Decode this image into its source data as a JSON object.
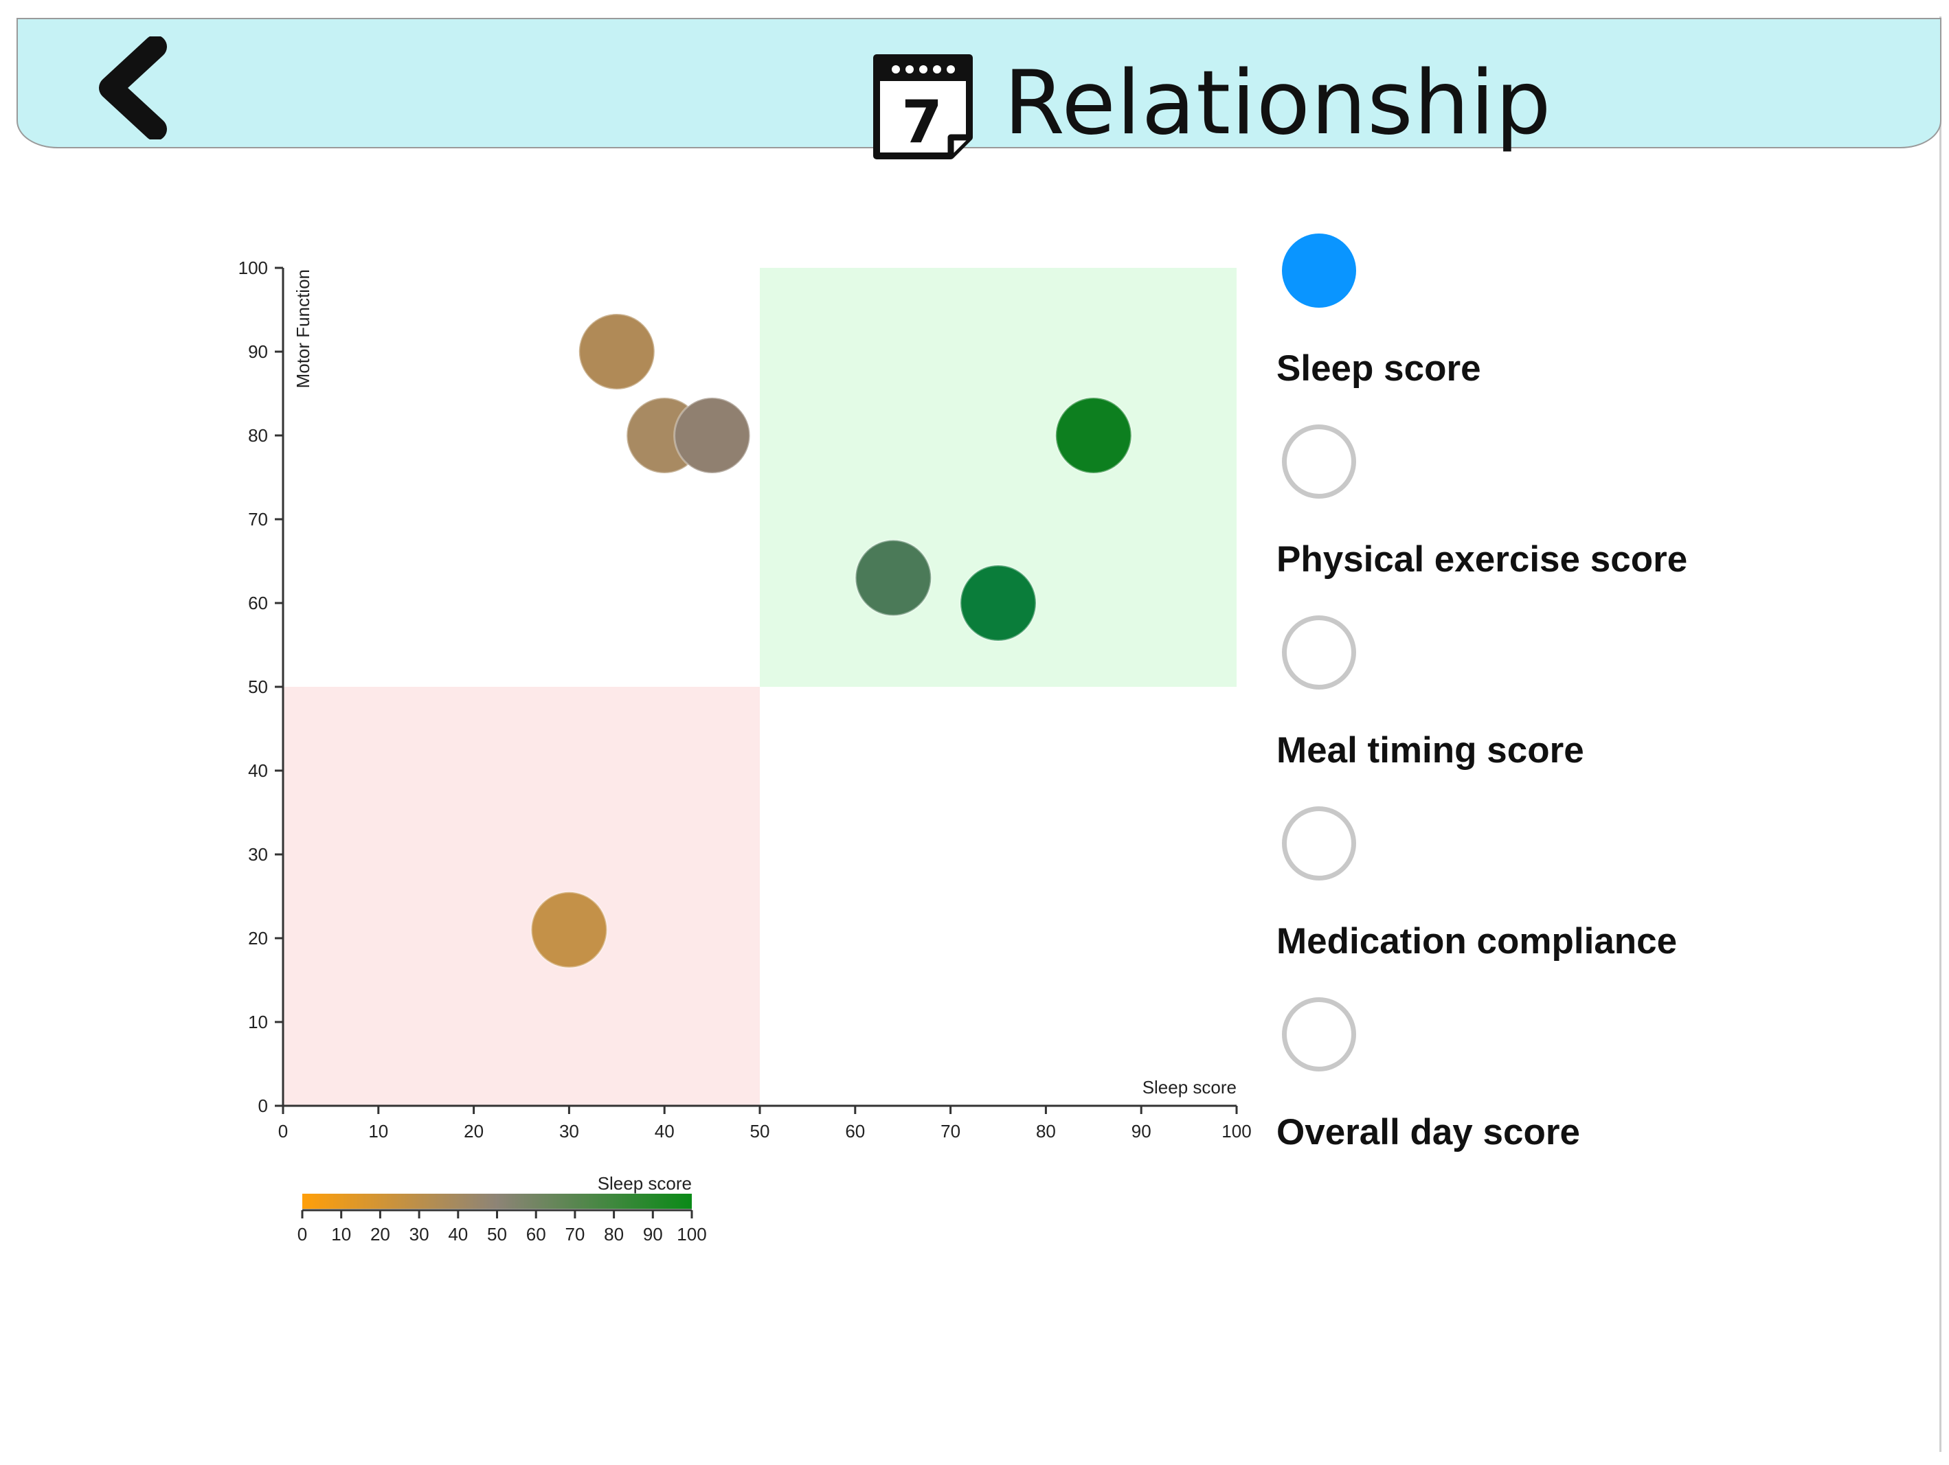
{
  "header": {
    "title": "Relationship",
    "back_icon": "chevron-left-icon",
    "calendar_icon": "calendar-icon",
    "calendar_day": "7"
  },
  "legend": {
    "items": [
      {
        "label": "Sleep score",
        "selected": true
      },
      {
        "label": "Physical exercise score",
        "selected": false
      },
      {
        "label": "Meal timing score",
        "selected": false
      },
      {
        "label": "Medication compliance",
        "selected": false
      },
      {
        "label": "Overall day score",
        "selected": false
      }
    ],
    "selected_color": "#0a95ff",
    "unselected_color": "#c8c8c8"
  },
  "chart_data": {
    "type": "scatter",
    "xlabel": "Sleep score",
    "ylabel": "Motor Function",
    "xlim": [
      0,
      100
    ],
    "ylim": [
      0,
      100
    ],
    "x_ticks": [
      0,
      10,
      20,
      30,
      40,
      50,
      60,
      70,
      80,
      90,
      100
    ],
    "y_ticks": [
      0,
      10,
      20,
      30,
      40,
      50,
      60,
      70,
      80,
      90,
      100
    ],
    "regions": [
      {
        "name": "good-quadrant",
        "x": [
          50,
          100
        ],
        "y": [
          50,
          100
        ],
        "color": "#e3fbe6"
      },
      {
        "name": "poor-quadrant",
        "x": [
          0,
          50
        ],
        "y": [
          0,
          50
        ],
        "color": "#fde9e9"
      }
    ],
    "points": [
      {
        "x": 35,
        "y": 90,
        "color": "#b08a57"
      },
      {
        "x": 40,
        "y": 80,
        "color": "#a88a62"
      },
      {
        "x": 45,
        "y": 80,
        "color": "#908070"
      },
      {
        "x": 85,
        "y": 80,
        "color": "#0d7f1f"
      },
      {
        "x": 64,
        "y": 63,
        "color": "#4b7a58"
      },
      {
        "x": 75,
        "y": 60,
        "color": "#0a7d3a"
      },
      {
        "x": 30,
        "y": 21,
        "color": "#c49148"
      }
    ],
    "colorbar": {
      "label": "Sleep score",
      "range": [
        0,
        100
      ],
      "ticks": [
        0,
        10,
        20,
        30,
        40,
        50,
        60,
        70,
        80,
        90,
        100
      ],
      "color_low": "#ff9f0a",
      "color_mid": "#8d8476",
      "color_high": "#0a8a17"
    }
  }
}
